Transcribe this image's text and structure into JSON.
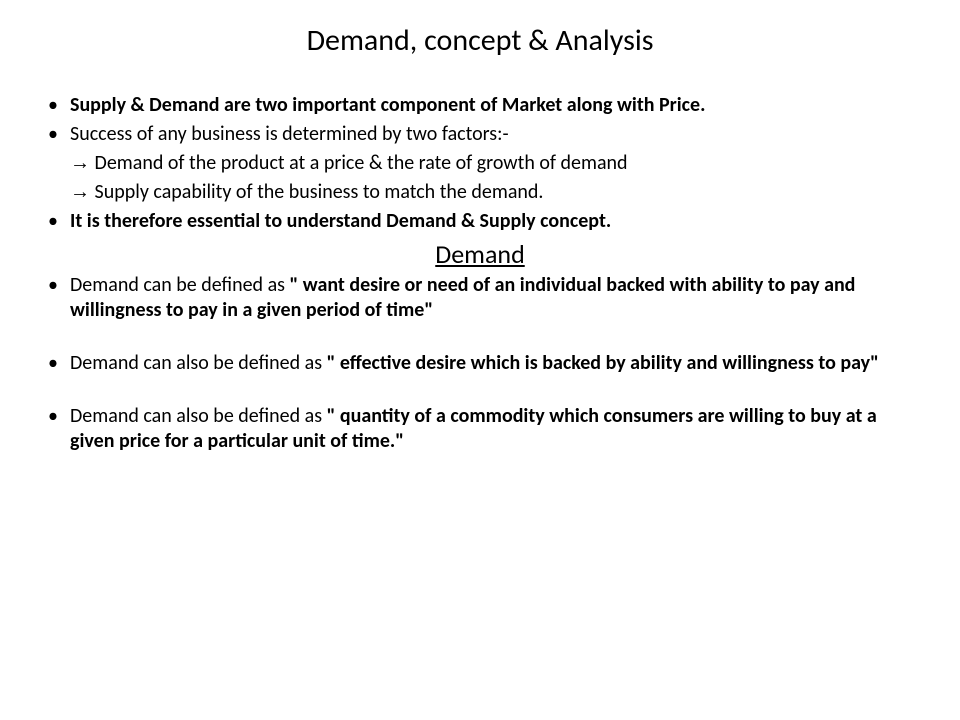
{
  "title": "Demand, concept & Analysis",
  "subheading": "Demand",
  "bullets": {
    "b1_bold": "Supply & Demand are two important component of Market along with Price.",
    "b2": "Success of any business is determined by two factors:-",
    "b2_sub1": " Demand of the product at a price & the rate of growth of demand",
    "b2_sub2": " Supply capability of the business to match the demand.",
    "b3_bold": "It is therefore essential to understand Demand & Supply concept.",
    "b4_pre": "Demand can be defined as ",
    "b4_bold": "\" want desire or need of an individual backed with ability to pay and willingness to pay in a given period of time\"",
    "b5_pre": "Demand can also be defined as ",
    "b5_bold": "\" effective desire which is backed by ability and willingness to pay\"",
    "b6_pre": "Demand can also be defined as ",
    "b6_bold": "\" quantity of a commodity which consumers are willing to buy at a given price for a particular unit of time.\""
  },
  "arrow": "→",
  "colors": {
    "text": "#000000",
    "background": "#ffffff"
  },
  "fonts": {
    "title_size": 30,
    "body_size": 20,
    "subheading_size": 26
  }
}
